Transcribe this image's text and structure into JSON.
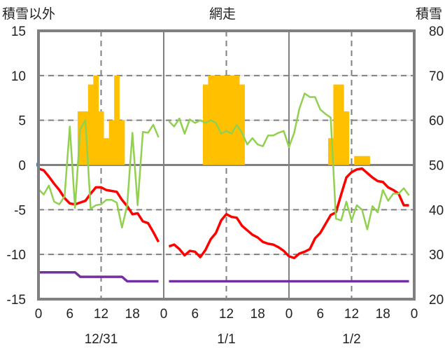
{
  "chart_data": {
    "type": "line",
    "title": "網走",
    "ylabel_left": "積雪以外",
    "ylabel_right": "積雪",
    "ylim_left": [
      -15,
      15
    ],
    "ylim_right": [
      20,
      80
    ],
    "yticks_left": [
      "15",
      "10",
      "5",
      "0",
      "-5",
      "-10",
      "-15"
    ],
    "yticks_right": [
      "80",
      "70",
      "60",
      "50",
      "40",
      "30",
      "20"
    ],
    "xlim_hours": [
      0,
      72
    ],
    "xticks": [
      "0",
      "6",
      "12",
      "18",
      "0",
      "6",
      "12",
      "18",
      "0",
      "6",
      "12",
      "18",
      "0"
    ],
    "dates": [
      "12/31",
      "1/1",
      "1/2"
    ],
    "grid": true,
    "colors": {
      "bars": "#FFC000",
      "red": "#FF0000",
      "green": "#92D050",
      "purple": "#7030A0",
      "frame": "#808080",
      "marker": "#2E75B6"
    },
    "bars": {
      "axis": "left",
      "hours": [
        8,
        9,
        10,
        11,
        12,
        13,
        14,
        15,
        16,
        32,
        33,
        34,
        35,
        36,
        37,
        38,
        39,
        56,
        57,
        58,
        59,
        61,
        62,
        63
      ],
      "values": [
        6,
        6,
        9,
        10,
        6,
        3,
        5,
        10,
        5,
        9,
        10,
        10,
        10,
        10,
        10,
        10,
        9,
        3,
        9,
        9,
        6,
        1,
        1,
        1
      ]
    },
    "series": [
      {
        "name": "red",
        "axis": "left",
        "segments": [
          {
            "start": 0,
            "values": [
              -0.4,
              -0.6,
              -1.3,
              -2.1,
              -2.8,
              -3.7,
              -4.3,
              -4.4,
              -4.2,
              -4.0,
              -3.2,
              -2.5,
              -2.5,
              -2.8,
              -2.9,
              -3.0,
              -3.9,
              -4.6,
              -5.5,
              -5.4,
              -6.3,
              -6.5,
              -7.5,
              -8.6
            ]
          },
          {
            "start": 25,
            "values": [
              -9.1,
              -8.9,
              -9.4,
              -10.1,
              -9.6,
              -9.7,
              -10.3,
              -9.5,
              -8.3,
              -7.6,
              -6.2,
              -5.5,
              -5.8,
              -5.9,
              -6.8,
              -7.3,
              -7.8,
              -8.1,
              -8.6,
              -8.8,
              -8.9,
              -9.2,
              -9.6,
              -10.2,
              -10.4,
              -9.9,
              -9.7,
              -9.4,
              -8.2,
              -7.6,
              -6.6,
              -5.6,
              -5.3,
              -3.3,
              -1.4,
              -0.8,
              -0.5,
              -0.4,
              -0.9,
              -1.4,
              -1.8,
              -1.9,
              -2.5,
              -2.8,
              -3.2,
              -4.5,
              -4.5
            ]
          }
        ]
      },
      {
        "name": "green",
        "axis": "left",
        "segments": [
          {
            "start": 0,
            "values": [
              -2.7,
              -3.3,
              -2.3,
              -4.1,
              -4.4,
              -3.5,
              4.3,
              -4.8,
              4.0,
              5.0,
              -4.9,
              -4.5,
              -4.4,
              -3.9,
              -3.9,
              -4.2,
              -7.0,
              -4.5,
              3.6,
              -4.5,
              3.7,
              3.6,
              4.5,
              3.1
            ]
          },
          {
            "start": 25,
            "values": [
              4.9,
              4.3,
              5.2,
              3.5,
              5.1,
              4.7,
              5.0,
              4.7,
              5.0,
              4.7,
              3.5,
              3.8,
              3.5,
              4.5,
              3.6,
              2.3,
              3.0,
              2.3,
              2.1,
              3.3,
              3.3,
              3.6,
              3.8,
              2.0,
              3.6,
              6.3,
              8.0,
              7.6,
              7.6,
              6.2,
              5.7,
              5.3,
              -6.0,
              -6.2,
              -4.1,
              -6.2,
              -4.5,
              -5.0,
              -7.2,
              -4.6,
              -5.3,
              -2.8,
              -4.0,
              -3.2,
              -3.2,
              -2.6,
              -3.4
            ]
          }
        ]
      },
      {
        "name": "purple",
        "axis": "right",
        "segments": [
          {
            "start": 0,
            "values": [
              26,
              26,
              26,
              26,
              26,
              26,
              26,
              26,
              25,
              25,
              25,
              25,
              25,
              25,
              25,
              25,
              25,
              24,
              24,
              24,
              24,
              24,
              24,
              24
            ]
          },
          {
            "start": 25,
            "values": [
              24,
              24,
              24,
              24,
              24,
              24,
              24,
              24,
              24,
              24,
              24,
              24,
              24,
              24,
              24,
              24,
              24,
              24,
              24,
              24,
              24,
              24,
              24,
              24,
              24,
              24,
              24,
              24,
              24,
              24,
              24,
              24,
              24,
              24,
              24,
              24,
              24,
              24,
              24,
              24,
              24,
              24,
              24,
              24,
              24,
              24,
              24
            ]
          }
        ]
      }
    ]
  }
}
